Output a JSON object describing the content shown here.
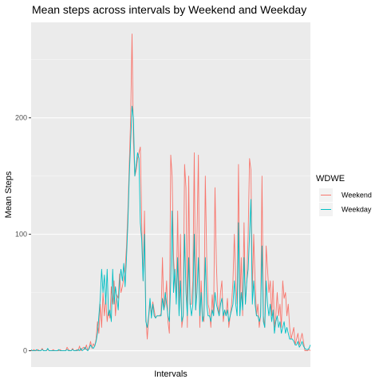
{
  "chart_data": {
    "type": "line",
    "title": "Mean steps across intervals by Weekend and Weekday",
    "xlabel": "Intervals",
    "ylabel": "Mean Steps",
    "x_ticks_shown": false,
    "y_ticks": [
      0,
      100,
      200
    ],
    "ylim": [
      -14,
      282
    ],
    "legend": {
      "title": "WDWE",
      "position": "right",
      "entries": [
        "Weekend",
        "Weekday"
      ]
    },
    "grid": true,
    "series": [
      {
        "name": "Weekend",
        "color": "#F8766D",
        "values": [
          0,
          0,
          1,
          0,
          0,
          1,
          0,
          0,
          2,
          0,
          0,
          0,
          1,
          0,
          0,
          0,
          1,
          0,
          0,
          0,
          0,
          1,
          0,
          0,
          0,
          0,
          3,
          1,
          0,
          0,
          2,
          0,
          0,
          1,
          0,
          4,
          0,
          2,
          3,
          1,
          5,
          0,
          3,
          8,
          2,
          6,
          4,
          10,
          25,
          15,
          40,
          20,
          50,
          30,
          45,
          25,
          35,
          28,
          55,
          40,
          60,
          30,
          48,
          45,
          66,
          50,
          55,
          62,
          70,
          90,
          120,
          160,
          200,
          272,
          180,
          150,
          155,
          165,
          170,
          175,
          110,
          60,
          120,
          30,
          10,
          28,
          40,
          32,
          42,
          35,
          28,
          30,
          30,
          30,
          32,
          80,
          35,
          40,
          60,
          25,
          15,
          168,
          150,
          80,
          60,
          45,
          120,
          35,
          100,
          20,
          30,
          160,
          140,
          20,
          150,
          40,
          40,
          60,
          170,
          35,
          100,
          168,
          20,
          60,
          30,
          25,
          150,
          80,
          40,
          35,
          20,
          48,
          30,
          140,
          75,
          40,
          30,
          50,
          60,
          25,
          35,
          30,
          45,
          20,
          30,
          40,
          60,
          100,
          60,
          40,
          160,
          40,
          80,
          30,
          110,
          40,
          60,
          100,
          165,
          155,
          50,
          100,
          60,
          30,
          40,
          20,
          30,
          150,
          30,
          20,
          90,
          70,
          50,
          60,
          30,
          60,
          20,
          30,
          50,
          30,
          40,
          20,
          60,
          45,
          50,
          30,
          40,
          20,
          10,
          15,
          20,
          5,
          10,
          15,
          5,
          10,
          15,
          8,
          0,
          0,
          0,
          1,
          0
        ]
      },
      {
        "name": "Weekday",
        "color": "#00BFC4",
        "values": [
          1,
          0,
          0,
          0,
          1,
          0,
          0,
          0,
          1,
          0,
          0,
          0,
          2,
          0,
          0,
          0,
          0,
          0,
          0,
          0,
          1,
          0,
          0,
          0,
          0,
          0,
          1,
          0,
          0,
          0,
          1,
          0,
          0,
          0,
          1,
          0,
          2,
          0,
          1,
          3,
          1,
          0,
          2,
          5,
          3,
          2,
          4,
          8,
          15,
          30,
          45,
          70,
          50,
          65,
          40,
          70,
          30,
          35,
          25,
          70,
          40,
          55,
          45,
          35,
          60,
          70,
          60,
          75,
          55,
          80,
          110,
          150,
          180,
          210,
          200,
          150,
          160,
          170,
          165,
          110,
          95,
          60,
          100,
          25,
          20,
          30,
          45,
          28,
          40,
          30,
          28,
          30,
          30,
          30,
          30,
          45,
          35,
          50,
          40,
          30,
          25,
          60,
          120,
          50,
          70,
          40,
          80,
          30,
          60,
          25,
          30,
          100,
          50,
          30,
          80,
          40,
          30,
          40,
          100,
          35,
          50,
          80,
          30,
          50,
          25,
          30,
          80,
          40,
          30,
          30,
          25,
          35,
          30,
          50,
          40,
          35,
          30,
          40,
          45,
          30,
          35,
          30,
          35,
          25,
          30,
          35,
          40,
          60,
          40,
          30,
          110,
          30,
          50,
          35,
          80,
          40,
          60,
          70,
          100,
          130,
          40,
          60,
          40,
          30,
          30,
          25,
          30,
          90,
          25,
          20,
          60,
          40,
          30,
          40,
          25,
          35,
          15,
          25,
          30,
          20,
          25,
          15,
          20,
          25,
          15,
          20,
          15,
          10,
          10,
          10,
          8,
          5,
          5,
          8,
          3,
          5,
          8,
          4,
          2,
          1,
          1,
          2,
          5
        ]
      }
    ]
  }
}
